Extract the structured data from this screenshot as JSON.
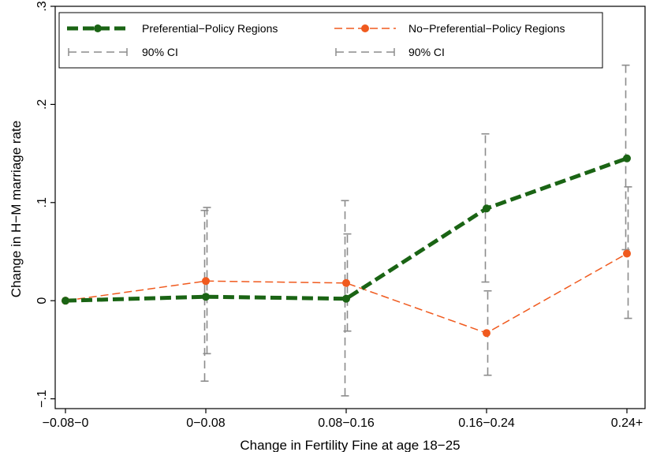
{
  "chart_data": {
    "type": "line",
    "xlabel": "Change in Fertility Fine at age 18−25",
    "ylabel": "Change in H−M marriage rate",
    "categories": [
      "−0.08−0",
      "0−0.08",
      "0.08−0.16",
      "0.16−0.24",
      "0.24+"
    ],
    "ylim": [
      -0.11,
      0.3
    ],
    "yticks": [
      -0.1,
      0,
      0.1,
      0.2,
      0.3
    ],
    "ytick_labels": [
      "−.1",
      "0",
      ".1",
      ".2",
      ".3"
    ],
    "grid": false,
    "legend_position": "top",
    "series": [
      {
        "name": "Preferential−Policy Regions",
        "ci_name": "90% CI",
        "color": "#1a6414",
        "style": "thick-dashed",
        "values": [
          0.0,
          0.004,
          0.002,
          0.094,
          0.145
        ],
        "ci_lower": [
          0.0,
          -0.082,
          -0.097,
          0.019,
          0.052
        ],
        "ci_upper": [
          0.0,
          0.092,
          0.102,
          0.17,
          0.24
        ]
      },
      {
        "name": "No−Preferential−Policy Regions",
        "ci_name": "90% CI",
        "color": "#f05a1e",
        "style": "thin-dashed",
        "values": [
          0.0,
          0.02,
          0.018,
          -0.033,
          0.048
        ],
        "ci_lower": [
          0.0,
          -0.054,
          -0.031,
          -0.076,
          -0.018
        ],
        "ci_upper": [
          0.0,
          0.095,
          0.068,
          0.01,
          0.116
        ]
      }
    ]
  }
}
